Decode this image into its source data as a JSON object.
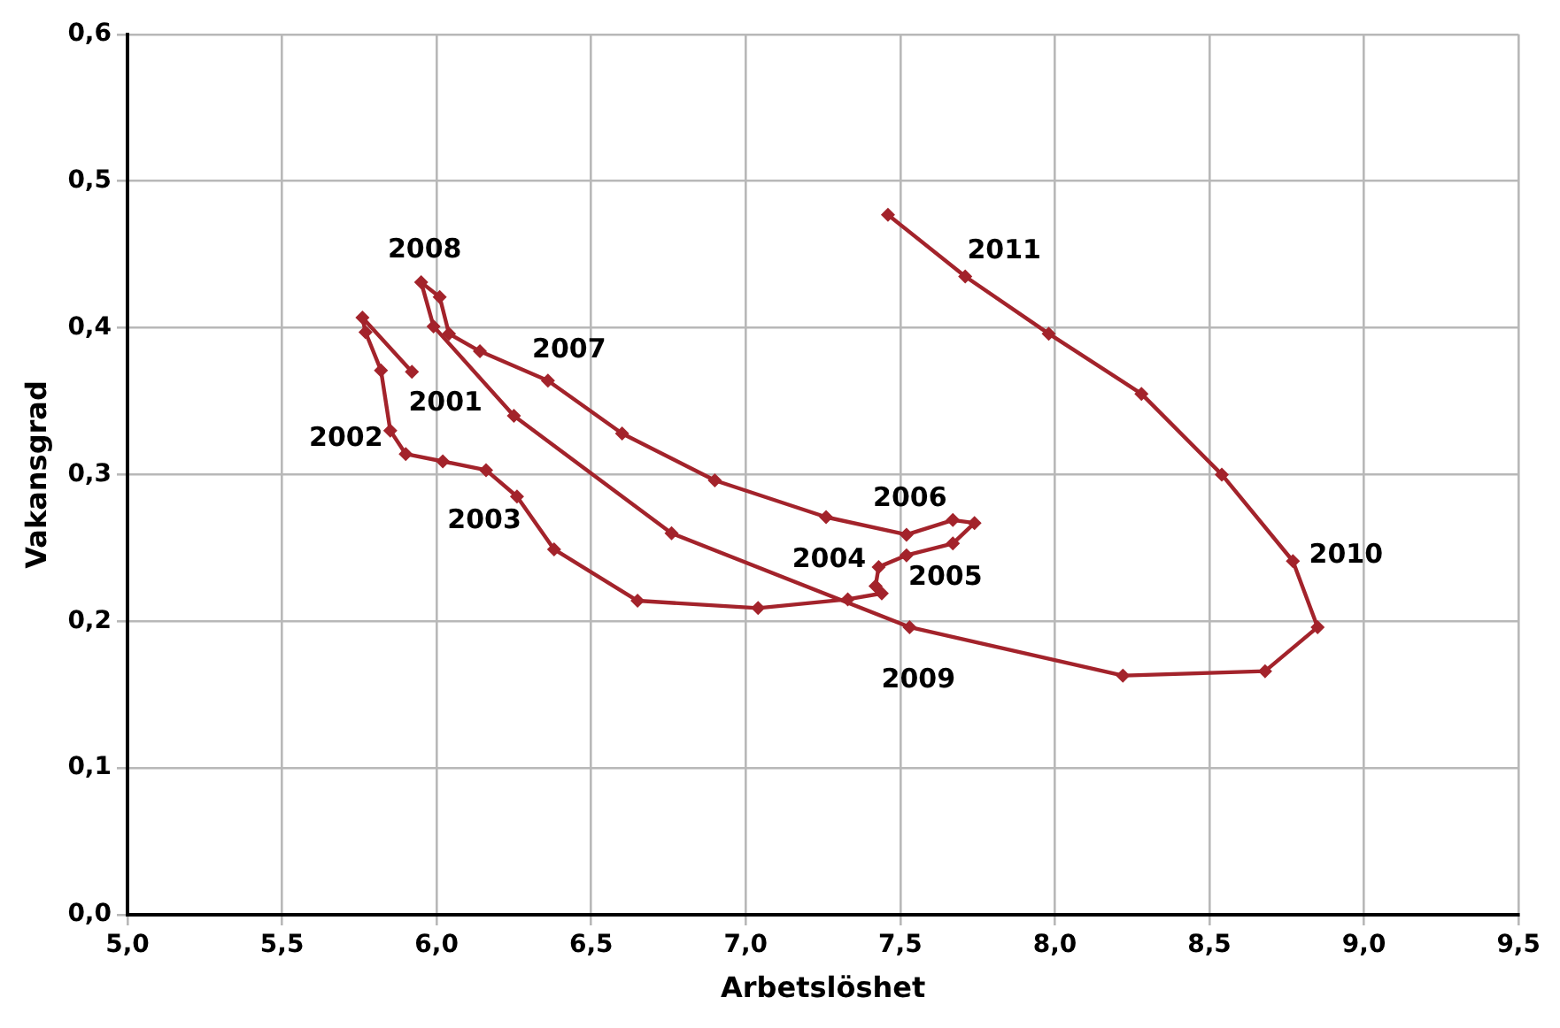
{
  "chart_data": {
    "type": "line",
    "xlabel": "Arbetslöshet",
    "ylabel": "Vakansgrad",
    "series": [
      {
        "color": "#a3232b",
        "x": [
          5.92,
          5.76,
          5.77,
          5.82,
          5.85,
          5.9,
          6.02,
          6.16,
          6.26,
          6.38,
          6.65,
          7.04,
          7.33,
          7.44,
          7.42,
          7.43,
          7.52,
          7.67,
          7.74,
          7.67,
          7.52,
          7.26,
          6.9,
          6.6,
          6.36,
          6.14,
          6.04,
          6.01,
          5.95,
          5.99,
          6.25,
          6.76,
          7.53,
          8.22,
          8.68,
          8.85,
          8.77,
          8.54,
          8.28,
          7.98,
          7.71,
          7.46
        ],
        "values": [
          0.37,
          0.407,
          0.397,
          0.371,
          0.33,
          0.314,
          0.309,
          0.303,
          0.285,
          0.249,
          0.214,
          0.209,
          0.215,
          0.219,
          0.224,
          0.237,
          0.245,
          0.253,
          0.267,
          0.269,
          0.259,
          0.271,
          0.296,
          0.328,
          0.364,
          0.384,
          0.396,
          0.421,
          0.431,
          0.401,
          0.34,
          0.26,
          0.196,
          0.163,
          0.166,
          0.196,
          0.241,
          0.3,
          0.355,
          0.396,
          0.435,
          0.477
        ]
      }
    ],
    "xlim": [
      5.0,
      9.5
    ],
    "xticks": [
      {
        "value": 5.0,
        "label": "5,0"
      },
      {
        "value": 5.5,
        "label": "5,5"
      },
      {
        "value": 6.0,
        "label": "6,0"
      },
      {
        "value": 6.5,
        "label": "6,5"
      },
      {
        "value": 7.0,
        "label": "7,0"
      },
      {
        "value": 7.5,
        "label": "7,5"
      },
      {
        "value": 8.0,
        "label": "8,0"
      },
      {
        "value": 8.5,
        "label": "8,5"
      },
      {
        "value": 9.0,
        "label": "9,0"
      },
      {
        "value": 9.5,
        "label": "9,5"
      }
    ],
    "ylim": [
      0,
      0.6
    ],
    "yticks": [
      {
        "value": 0,
        "label": "0,0"
      },
      {
        "value": 0.1,
        "label": "0,1"
      },
      {
        "value": 0.2,
        "label": "0,2"
      },
      {
        "value": 0.3,
        "label": "0,3"
      },
      {
        "value": 0.4,
        "label": "0,4"
      },
      {
        "value": 0.5,
        "label": "0,5"
      },
      {
        "value": 0.6,
        "label": "0,6"
      }
    ],
    "grid": true,
    "marker": "diamond",
    "line_style": "solid",
    "annotations": [
      {
        "text": "2001",
        "x": 5.92,
        "y": 0.37
      },
      {
        "text": "2002",
        "x": 5.85,
        "y": 0.33
      },
      {
        "text": "2003",
        "x": 6.16,
        "y": 0.303
      },
      {
        "text": "2004",
        "x": 7.43,
        "y": 0.237
      },
      {
        "text": "2005",
        "x": 7.52,
        "y": 0.245
      },
      {
        "text": "2006",
        "x": 7.52,
        "y": 0.259
      },
      {
        "text": "2007",
        "x": 6.36,
        "y": 0.364
      },
      {
        "text": "2008",
        "x": 5.95,
        "y": 0.431
      },
      {
        "text": "2009",
        "x": 7.53,
        "y": 0.196
      },
      {
        "text": "2010",
        "x": 8.77,
        "y": 0.241
      },
      {
        "text": "2011",
        "x": 7.71,
        "y": 0.435
      }
    ]
  }
}
